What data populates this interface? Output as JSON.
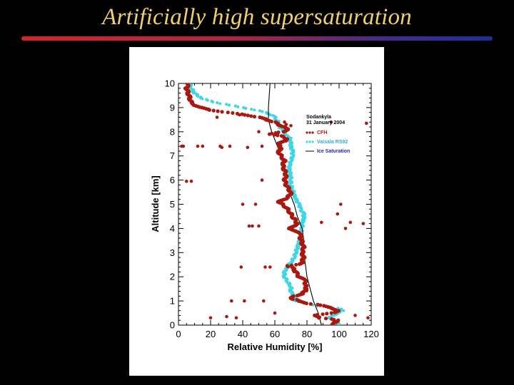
{
  "slide": {
    "title": "Artificially high supersaturation",
    "rule_gradient": [
      "#d4242a",
      "#1e2f9a"
    ],
    "title_color": "#f2cf6e",
    "background": "#000000"
  },
  "chart_data": {
    "type": "scatter",
    "xlabel": "Relative Humidity [%]",
    "ylabel": "Altitude [km]",
    "xlim": [
      0,
      120
    ],
    "ylim": [
      0,
      10
    ],
    "xticks": [
      0,
      20,
      40,
      60,
      80,
      100,
      120
    ],
    "yticks": [
      0,
      1,
      2,
      3,
      4,
      5,
      6,
      7,
      8,
      9,
      10
    ],
    "grid": false,
    "legend_position": "top-right",
    "annotation": {
      "line1": "Sodankyla",
      "line2": "31 January 2004"
    },
    "series": [
      {
        "name": "CFH",
        "marker": "circle",
        "color": "#a8190f",
        "profile": [
          [
            10.0,
            6
          ],
          [
            9.8,
            5
          ],
          [
            9.6,
            6
          ],
          [
            9.4,
            7
          ],
          [
            9.2,
            8
          ],
          [
            9.1,
            10
          ],
          [
            9.0,
            14
          ],
          [
            8.9,
            20
          ],
          [
            8.8,
            30
          ],
          [
            8.7,
            42
          ],
          [
            8.6,
            50
          ],
          [
            8.5,
            55
          ],
          [
            8.4,
            60
          ],
          [
            8.3,
            62
          ],
          [
            8.2,
            66
          ],
          [
            8.1,
            68
          ],
          [
            8.0,
            66
          ],
          [
            7.95,
            60
          ],
          [
            7.9,
            56
          ],
          [
            7.85,
            62
          ],
          [
            7.8,
            66
          ],
          [
            7.7,
            67
          ],
          [
            7.6,
            66
          ],
          [
            7.5,
            62
          ],
          [
            7.4,
            63
          ],
          [
            7.3,
            64
          ],
          [
            7.2,
            62
          ],
          [
            7.0,
            64
          ],
          [
            6.8,
            66
          ],
          [
            6.6,
            65
          ],
          [
            6.4,
            66
          ],
          [
            6.2,
            67
          ],
          [
            6.0,
            66
          ],
          [
            5.8,
            67
          ],
          [
            5.6,
            69
          ],
          [
            5.4,
            70
          ],
          [
            5.3,
            68
          ],
          [
            5.2,
            66
          ],
          [
            5.1,
            62
          ],
          [
            5.0,
            65
          ],
          [
            4.8,
            68
          ],
          [
            4.6,
            70
          ],
          [
            4.4,
            72
          ],
          [
            4.2,
            74
          ],
          [
            4.1,
            72
          ],
          [
            4.0,
            69
          ],
          [
            3.9,
            72
          ],
          [
            3.8,
            76
          ],
          [
            3.6,
            76
          ],
          [
            3.4,
            77
          ],
          [
            3.2,
            78
          ],
          [
            3.0,
            77
          ],
          [
            2.8,
            78
          ],
          [
            2.6,
            77
          ],
          [
            2.5,
            74
          ],
          [
            2.45,
            68
          ],
          [
            2.4,
            70
          ],
          [
            2.3,
            72
          ],
          [
            2.2,
            73
          ],
          [
            2.0,
            75
          ],
          [
            1.9,
            78
          ],
          [
            1.8,
            80
          ],
          [
            1.7,
            78
          ],
          [
            1.6,
            80
          ],
          [
            1.5,
            79
          ],
          [
            1.4,
            79
          ],
          [
            1.3,
            77
          ],
          [
            1.2,
            72
          ],
          [
            1.1,
            70
          ],
          [
            1.05,
            73
          ],
          [
            1.0,
            75
          ],
          [
            0.9,
            80
          ],
          [
            0.85,
            86
          ],
          [
            0.8,
            90
          ],
          [
            0.7,
            96
          ],
          [
            0.6,
            99
          ],
          [
            0.5,
            96
          ],
          [
            0.45,
            90
          ],
          [
            0.4,
            84
          ],
          [
            0.3,
            88
          ],
          [
            0.25,
            96
          ],
          [
            0.2,
            99
          ],
          [
            0.1,
            97
          ],
          [
            0.0,
            96
          ]
        ],
        "scattered_points": [
          [
            2,
            7.4
          ],
          [
            3,
            7.4
          ],
          [
            5,
            5.95
          ],
          [
            8,
            5.95
          ],
          [
            12,
            7.4
          ],
          [
            15,
            7.4
          ],
          [
            20,
            0.3
          ],
          [
            24,
            8.6
          ],
          [
            26,
            7.4
          ],
          [
            27,
            7.35
          ],
          [
            30,
            0.35
          ],
          [
            32,
            7.4
          ],
          [
            33,
            1.0
          ],
          [
            36,
            0.3
          ],
          [
            38,
            8.7
          ],
          [
            39,
            2.4
          ],
          [
            40,
            5.0
          ],
          [
            41,
            1.0
          ],
          [
            43,
            7.35
          ],
          [
            44,
            4.1
          ],
          [
            46,
            4.1
          ],
          [
            48,
            5.0
          ],
          [
            50,
            4.1
          ],
          [
            50,
            8.0
          ],
          [
            52,
            6.0
          ],
          [
            52,
            7.4
          ],
          [
            53,
            1.0
          ],
          [
            54,
            2.4
          ],
          [
            55,
            8.5
          ],
          [
            57,
            2.4
          ],
          [
            60,
            0.5
          ],
          [
            66,
            8.4
          ],
          [
            67,
            8.3
          ],
          [
            70,
            8.25
          ],
          [
            89,
            4.25
          ],
          [
            95,
            8.4
          ],
          [
            99,
            4.6
          ],
          [
            101,
            5.0
          ],
          [
            104,
            4.0
          ],
          [
            107,
            4.25
          ],
          [
            110,
            0.4
          ],
          [
            115,
            4.2
          ],
          [
            117,
            8.35
          ],
          [
            118,
            0.3
          ]
        ]
      },
      {
        "name": "Vaisala RS92",
        "marker": "circle",
        "color": "#3fd6e6",
        "profile": [
          [
            10.0,
            7
          ],
          [
            9.8,
            8
          ],
          [
            9.6,
            10
          ],
          [
            9.4,
            14
          ],
          [
            9.3,
            18
          ],
          [
            9.2,
            24
          ],
          [
            9.1,
            32
          ],
          [
            9.0,
            40
          ],
          [
            8.9,
            48
          ],
          [
            8.8,
            54
          ],
          [
            8.7,
            58
          ],
          [
            8.6,
            60
          ],
          [
            8.5,
            61
          ],
          [
            8.4,
            62
          ],
          [
            8.3,
            62
          ],
          [
            8.2,
            63
          ],
          [
            8.0,
            66
          ],
          [
            7.9,
            66
          ],
          [
            7.8,
            69
          ],
          [
            7.6,
            70
          ],
          [
            7.4,
            70
          ],
          [
            7.2,
            71
          ],
          [
            7.0,
            71
          ],
          [
            6.8,
            70
          ],
          [
            6.6,
            69
          ],
          [
            6.4,
            69
          ],
          [
            6.2,
            70
          ],
          [
            6.0,
            70
          ],
          [
            5.8,
            70
          ],
          [
            5.6,
            71
          ],
          [
            5.4,
            72
          ],
          [
            5.2,
            73
          ],
          [
            5.0,
            75
          ],
          [
            4.8,
            76
          ],
          [
            4.6,
            78
          ],
          [
            4.4,
            78
          ],
          [
            4.2,
            77
          ],
          [
            4.0,
            77
          ],
          [
            3.8,
            76
          ],
          [
            3.6,
            76
          ],
          [
            3.4,
            75
          ],
          [
            3.2,
            74
          ],
          [
            3.0,
            73
          ],
          [
            2.8,
            72
          ],
          [
            2.6,
            70
          ],
          [
            2.4,
            68
          ],
          [
            2.2,
            66
          ],
          [
            2.0,
            66
          ],
          [
            1.8,
            68
          ],
          [
            1.6,
            70
          ],
          [
            1.4,
            70
          ],
          [
            1.2,
            72
          ],
          [
            1.1,
            72
          ],
          [
            1.0,
            73
          ],
          [
            0.9,
            80
          ],
          [
            0.8,
            86
          ],
          [
            0.75,
            94
          ],
          [
            0.7,
            100
          ],
          [
            0.6,
            102
          ],
          [
            0.5,
            100
          ],
          [
            0.4,
            96
          ],
          [
            0.3,
            94
          ],
          [
            0.2,
            96
          ],
          [
            0.1,
            98
          ],
          [
            0.0,
            100
          ]
        ]
      },
      {
        "name": "Ice Saturation",
        "marker": "line",
        "color": "#000000",
        "points": [
          [
            57,
            10.0
          ],
          [
            56,
            9.0
          ],
          [
            56,
            8.5
          ],
          [
            58,
            8.0
          ],
          [
            61,
            7.5
          ],
          [
            64,
            7.0
          ],
          [
            66,
            6.5
          ],
          [
            67,
            6.0
          ],
          [
            69,
            5.5
          ],
          [
            72,
            5.0
          ],
          [
            74,
            4.5
          ],
          [
            77,
            4.0
          ],
          [
            78,
            3.5
          ],
          [
            78,
            3.0
          ],
          [
            79,
            2.5
          ],
          [
            80,
            2.0
          ],
          [
            82,
            1.5
          ],
          [
            84,
            1.0
          ],
          [
            87,
            0.5
          ],
          [
            89,
            0.0
          ]
        ]
      }
    ]
  }
}
